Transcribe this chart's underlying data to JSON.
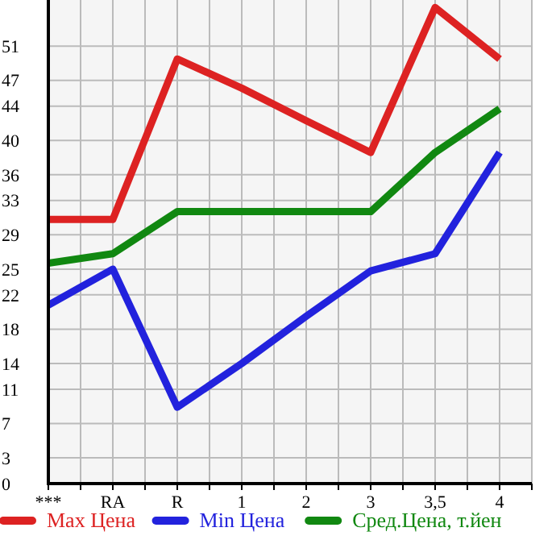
{
  "chart_data": {
    "type": "line",
    "categories": [
      "***",
      "RA",
      "R",
      "1",
      "2",
      "3",
      "3,5",
      "4"
    ],
    "series": [
      {
        "name": "Max Цена",
        "color": "#dd2222",
        "values": [
          30.8,
          30.8,
          49.5,
          46.1,
          42.3,
          38.6,
          55.5,
          49.5
        ]
      },
      {
        "name": "Min Цена",
        "color": "#2222dd",
        "values": [
          20.8,
          25.0,
          8.9,
          14.0,
          19.5,
          24.8,
          26.8,
          38.6
        ]
      },
      {
        "name": "Сред.Цена, т.йен",
        "color": "#118811",
        "values": [
          25.7,
          26.8,
          31.7,
          31.7,
          31.7,
          31.7,
          38.6,
          43.7
        ]
      }
    ],
    "ylim": [
      0,
      56
    ],
    "yticks": [
      0,
      3,
      7,
      11,
      14,
      18,
      22,
      25,
      29,
      33,
      36,
      40,
      44,
      47,
      51
    ],
    "grid": true,
    "legend": "bottom",
    "marker": "none",
    "line_style": "solid"
  }
}
